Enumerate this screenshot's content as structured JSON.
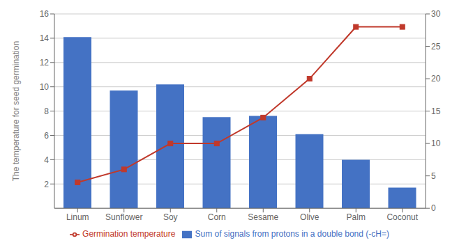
{
  "chart_data": {
    "type": "bar",
    "categories": [
      "Linum",
      "Sunflower",
      "Soy",
      "Corn",
      "Sesame",
      "Olive",
      "Palm",
      "Coconut"
    ],
    "series": [
      {
        "name": "Sum of signals from protons in a double bond (-cH=)",
        "type": "bar",
        "color": "#4472C4",
        "values": [
          14.1,
          9.7,
          10.2,
          7.5,
          7.6,
          6.1,
          4.0,
          1.7
        ]
      },
      {
        "name": "Germination temperature",
        "type": "line",
        "color": "#C0392B",
        "marker": "square",
        "axis": "y2",
        "values": [
          4.0,
          6.0,
          10.0,
          10.0,
          14.0,
          20.0,
          28.0,
          28.0
        ]
      }
    ],
    "ylabel": "The temperature for seed germination",
    "ylim": [
      0,
      16
    ],
    "yticks": [
      2,
      4,
      6,
      8,
      10,
      12,
      14,
      16
    ],
    "y2lim": [
      0,
      30
    ],
    "y2ticks": [
      0,
      5,
      10,
      15,
      20,
      25,
      30
    ],
    "grid": true,
    "legend": "bottom"
  }
}
